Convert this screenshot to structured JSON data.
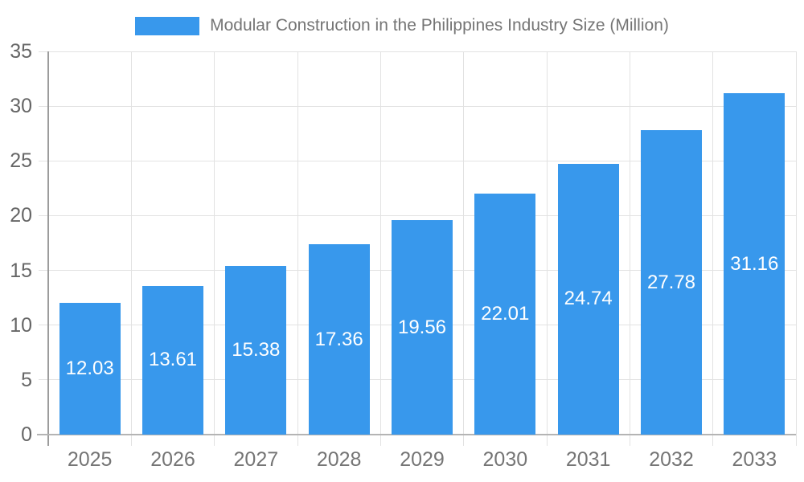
{
  "chart_data": {
    "type": "bar",
    "title": "Modular Construction in the Philippines Industry Size (Million)",
    "categories": [
      "2025",
      "2026",
      "2027",
      "2028",
      "2029",
      "2030",
      "2031",
      "2032",
      "2033"
    ],
    "values": [
      12.03,
      13.61,
      15.38,
      17.36,
      19.56,
      22.01,
      24.74,
      27.78,
      31.16
    ],
    "bar_labels": [
      "12.03",
      "13.61",
      "15.38",
      "17.36",
      "19.56",
      "22.01",
      "24.74",
      "27.78",
      "31.16"
    ],
    "xlabel": "",
    "ylabel": "",
    "ylim": [
      0,
      35
    ],
    "yticks": [
      0,
      5,
      10,
      15,
      20,
      25,
      30,
      35
    ],
    "grid": true,
    "legend_position": "top",
    "colors": {
      "bar": "#3898EC",
      "bar_label_text": "#FFFFFF",
      "grid_line": "#E2E2E2",
      "y_axis_line": "#9C9C9C",
      "baseline": "#B4B4B4",
      "y_tick_text": "#666666",
      "x_tick_text": "#757575",
      "legend_text": "#757575",
      "background": "#FFFFFF"
    }
  }
}
